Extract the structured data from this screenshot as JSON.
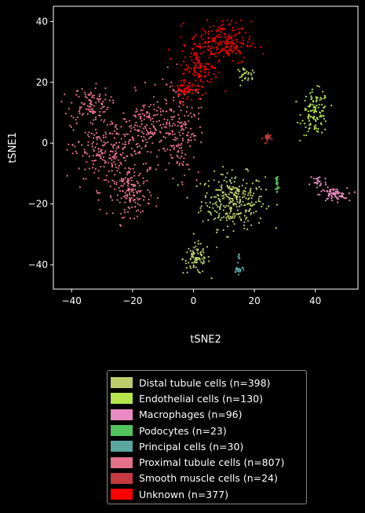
{
  "chart_data": {
    "type": "scatter",
    "xlabel": "tSNE2",
    "ylabel": "tSNE1",
    "xlim": [
      -46,
      54
    ],
    "ylim": [
      -48,
      45
    ],
    "xticks": [
      -40,
      -20,
      0,
      20,
      40
    ],
    "yticks": [
      -40,
      -20,
      0,
      20,
      40
    ],
    "grid": false,
    "legend_position": "below",
    "series": [
      {
        "name": "Distal tubule cells (n=398)",
        "color": "#bccd6a",
        "clusters": [
          {
            "x": 13,
            "y": -19,
            "sx": 5.2,
            "sy": 4.5,
            "n": 300
          },
          {
            "x": 1,
            "y": -38,
            "sx": 2.2,
            "sy": 2.5,
            "n": 85
          },
          {
            "x": 18,
            "y": 22,
            "sx": 1.2,
            "sy": 1.5,
            "n": 13
          }
        ]
      },
      {
        "name": "Endothelial cells (n=130)",
        "color": "#b6e64b",
        "clusters": [
          {
            "x": 40,
            "y": 10,
            "sx": 2.2,
            "sy": 3.6,
            "n": 115
          },
          {
            "x": 16,
            "y": 23,
            "sx": 1.0,
            "sy": 1.0,
            "n": 15
          }
        ]
      },
      {
        "name": "Macrophages (n=96)",
        "color": "#e98bc2",
        "clusters": [
          {
            "x": 46,
            "y": -17,
            "sx": 2.2,
            "sy": 1.1,
            "n": 70
          },
          {
            "x": 41,
            "y": -13,
            "sx": 1.4,
            "sy": 1.6,
            "n": 26
          }
        ]
      },
      {
        "name": "Podocytes (n=23)",
        "color": "#52c45e",
        "clusters": [
          {
            "x": 27.5,
            "y": -13.5,
            "sx": 0.3,
            "sy": 1.8,
            "n": 23
          }
        ]
      },
      {
        "name": "Principal cells (n=30)",
        "color": "#5aa5a0",
        "clusters": [
          {
            "x": 15,
            "y": -41.5,
            "sx": 0.9,
            "sy": 0.6,
            "n": 22
          },
          {
            "x": 15,
            "y": -38,
            "sx": 0.3,
            "sy": 0.8,
            "n": 8
          }
        ]
      },
      {
        "name": "Proximal tubule cells (n=807)",
        "color": "#e4708a",
        "clusters": [
          {
            "x": -34,
            "y": 13,
            "sx": 3.2,
            "sy": 2.8,
            "n": 100
          },
          {
            "x": -28,
            "y": -3,
            "sx": 6.0,
            "sy": 6.0,
            "n": 260
          },
          {
            "x": -20,
            "y": -17,
            "sx": 3.0,
            "sy": 3.5,
            "n": 130
          },
          {
            "x": -14,
            "y": 5,
            "sx": 4.5,
            "sy": 5.5,
            "n": 170
          },
          {
            "x": -4,
            "y": 5,
            "sx": 3.0,
            "sy": 8.0,
            "n": 147
          }
        ]
      },
      {
        "name": "Smooth muscle cells (n=24)",
        "color": "#c43a3e",
        "clusters": [
          {
            "x": 24,
            "y": 1.5,
            "sx": 0.6,
            "sy": 0.9,
            "n": 24
          }
        ]
      },
      {
        "name": "Unknown (n=377)",
        "color": "#ff0000",
        "clusters": [
          {
            "x": 9,
            "y": 33,
            "sx": 5.0,
            "sy": 3.5,
            "n": 220
          },
          {
            "x": 2,
            "y": 24,
            "sx": 3.0,
            "sy": 3.2,
            "n": 100
          },
          {
            "x": -2,
            "y": 18,
            "sx": 2.2,
            "sy": 2.0,
            "n": 57
          }
        ]
      }
    ]
  }
}
